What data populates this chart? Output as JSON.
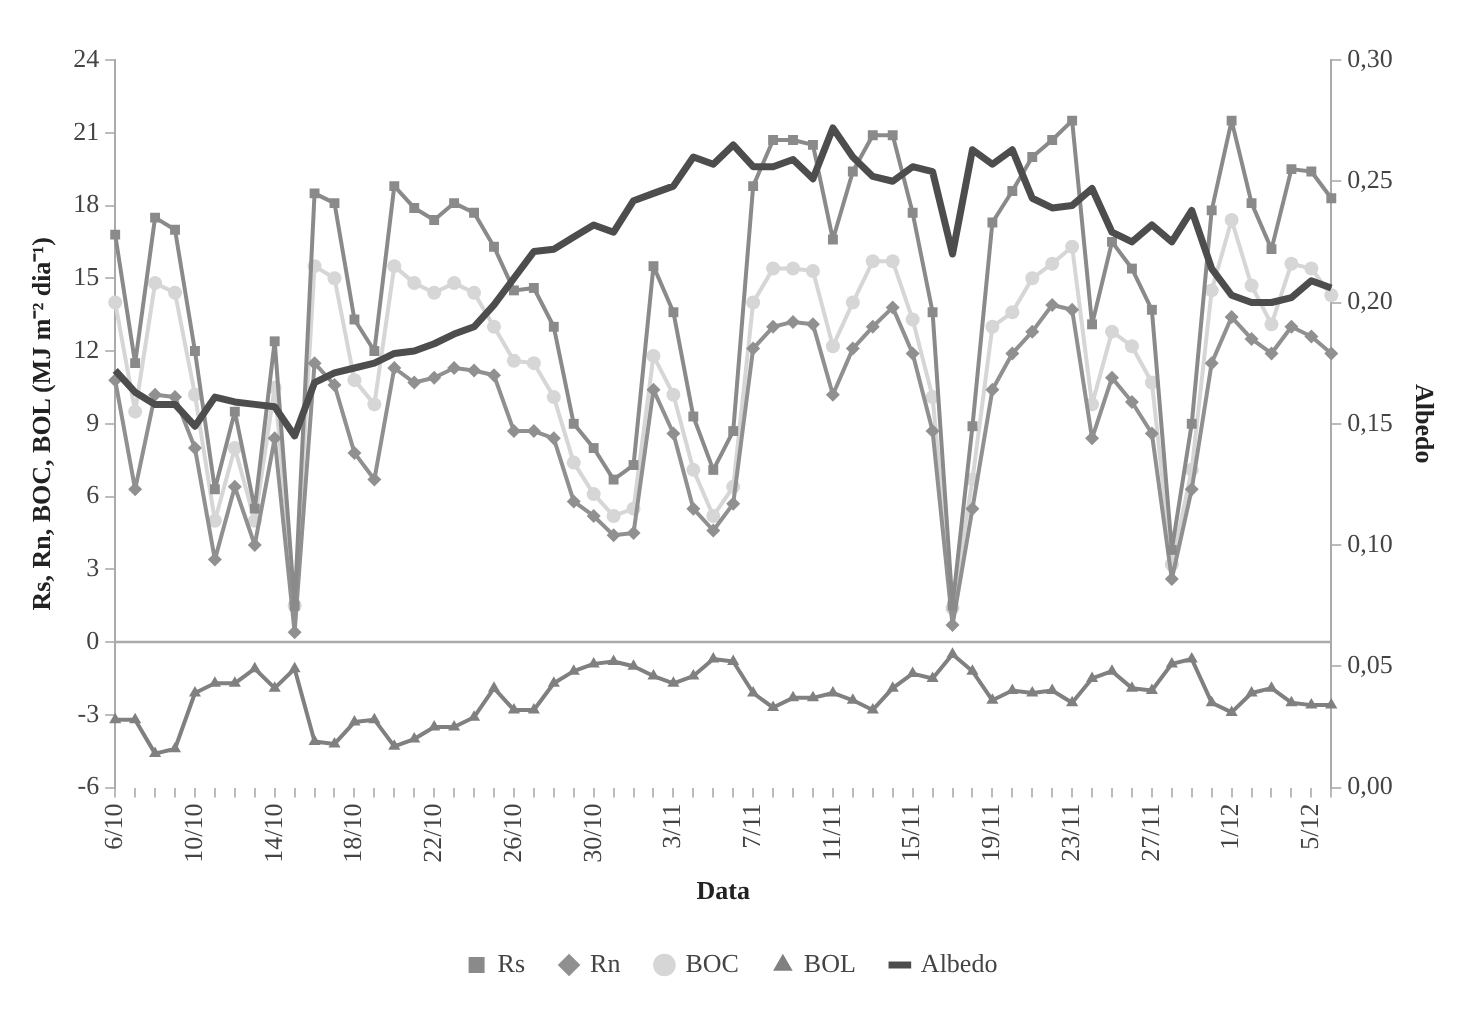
{
  "chart_data": {
    "type": "line",
    "xlabel": "Data",
    "ylabel": "Rs, Rn, BOC, BOL (MJ m⁻² dia⁻¹)",
    "y2label": "Albedo",
    "categories": [
      "6/10",
      null,
      null,
      null,
      "10/10",
      null,
      null,
      null,
      "14/10",
      null,
      null,
      null,
      "18/10",
      null,
      null,
      null,
      "22/10",
      null,
      null,
      null,
      "26/10",
      null,
      null,
      null,
      "30/10",
      null,
      null,
      null,
      "3/11",
      null,
      null,
      null,
      "7/11",
      null,
      null,
      null,
      "11/11",
      null,
      null,
      null,
      "15/11",
      null,
      null,
      null,
      "19/11",
      null,
      null,
      null,
      "23/11",
      null,
      null,
      null,
      "27/11",
      null,
      null,
      null,
      "1/12",
      null,
      null,
      null,
      "5/12",
      null
    ],
    "series": [
      {
        "name": "Rs",
        "color": "#8a8a8a",
        "marker": "square",
        "values": [
          16.8,
          11.5,
          17.5,
          17.0,
          12.0,
          6.3,
          9.5,
          5.5,
          12.4,
          1.5,
          18.5,
          18.1,
          13.3,
          12.0,
          18.8,
          17.9,
          17.4,
          18.1,
          17.7,
          16.3,
          14.5,
          14.6,
          13.0,
          9.0,
          8.0,
          6.7,
          7.3,
          15.5,
          13.6,
          9.3,
          7.1,
          8.7,
          18.8,
          20.7,
          20.7,
          20.5,
          16.6,
          19.4,
          20.9,
          20.9,
          17.7,
          13.6,
          1.5,
          8.9,
          17.3,
          18.6,
          20.0,
          20.7,
          21.5,
          13.1,
          16.5,
          15.4,
          13.7,
          3.8,
          9.0,
          17.8,
          21.5,
          18.1,
          16.2,
          19.5,
          19.4,
          18.3
        ]
      },
      {
        "name": "Rn",
        "color": "#909090",
        "marker": "diamond",
        "values": [
          10.8,
          6.3,
          10.2,
          10.1,
          8.0,
          3.4,
          6.4,
          4.0,
          8.4,
          0.4,
          11.5,
          10.6,
          7.8,
          6.7,
          11.3,
          10.7,
          10.9,
          11.3,
          11.2,
          11.0,
          8.7,
          8.7,
          8.4,
          5.8,
          5.2,
          4.4,
          4.5,
          10.4,
          8.6,
          5.5,
          4.6,
          5.7,
          12.1,
          13.0,
          13.2,
          13.1,
          10.2,
          12.1,
          13.0,
          13.8,
          11.9,
          8.7,
          0.7,
          5.5,
          10.4,
          11.9,
          12.8,
          13.9,
          13.7,
          8.4,
          10.9,
          9.9,
          8.6,
          2.6,
          6.3,
          11.5,
          13.4,
          12.5,
          11.9,
          13.0,
          12.6,
          11.9
        ]
      },
      {
        "name": "BOC",
        "color": "#d6d6d6",
        "marker": "circle",
        "values": [
          14.0,
          9.5,
          14.8,
          14.4,
          10.2,
          5.0,
          8.0,
          5.0,
          10.5,
          1.5,
          15.5,
          15.0,
          10.8,
          9.8,
          15.5,
          14.8,
          14.4,
          14.8,
          14.4,
          13.0,
          11.6,
          11.5,
          10.1,
          7.4,
          6.1,
          5.2,
          5.5,
          11.8,
          10.2,
          7.1,
          5.2,
          6.4,
          14.0,
          15.4,
          15.4,
          15.3,
          12.2,
          14.0,
          15.7,
          15.7,
          13.3,
          10.1,
          1.4,
          6.7,
          13.0,
          13.6,
          15.0,
          15.6,
          16.3,
          9.8,
          12.8,
          12.2,
          10.7,
          3.2,
          7.1,
          14.5,
          17.4,
          14.7,
          13.1,
          15.6,
          15.4,
          14.3
        ]
      },
      {
        "name": "BOL",
        "color": "#808080",
        "marker": "triangle",
        "values": [
          -3.2,
          -3.2,
          -4.6,
          -4.4,
          -2.1,
          -1.7,
          -1.7,
          -1.1,
          -1.9,
          -1.1,
          -4.1,
          -4.2,
          -3.3,
          -3.2,
          -4.3,
          -4.0,
          -3.5,
          -3.5,
          -3.1,
          -1.9,
          -2.8,
          -2.8,
          -1.7,
          -1.2,
          -0.9,
          -0.8,
          -1.0,
          -1.4,
          -1.7,
          -1.4,
          -0.7,
          -0.8,
          -2.1,
          -2.7,
          -2.3,
          -2.3,
          -2.1,
          -2.4,
          -2.8,
          -1.9,
          -1.3,
          -1.5,
          -0.5,
          -1.2,
          -2.4,
          -2.0,
          -2.1,
          -2.0,
          -2.5,
          -1.5,
          -1.2,
          -1.9,
          -2.0,
          -0.9,
          -0.7,
          -2.5,
          -2.9,
          -2.1,
          -1.9,
          -2.5,
          -2.6,
          -2.6
        ]
      },
      {
        "name": "Albedo",
        "color": "#4d4d4d",
        "marker": "none",
        "axis": "y2",
        "values": [
          0.172,
          0.163,
          0.158,
          0.158,
          0.149,
          0.161,
          0.159,
          0.158,
          0.157,
          0.145,
          0.167,
          0.171,
          0.173,
          0.175,
          0.179,
          0.18,
          0.183,
          0.187,
          0.19,
          0.199,
          0.21,
          0.221,
          0.222,
          0.227,
          0.232,
          0.229,
          0.242,
          0.245,
          0.248,
          0.26,
          0.257,
          0.265,
          0.256,
          0.256,
          0.259,
          0.251,
          0.272,
          0.26,
          0.252,
          0.25,
          0.256,
          0.254,
          0.22,
          0.263,
          0.257,
          0.263,
          0.243,
          0.239,
          0.24,
          0.247,
          0.229,
          0.225,
          0.232,
          0.225,
          0.238,
          0.214,
          0.203,
          0.2,
          0.2,
          0.202,
          0.209,
          0.206
        ]
      }
    ],
    "ylim": [
      -6,
      24
    ],
    "yticks": [
      -6,
      -3,
      0,
      3,
      6,
      9,
      12,
      15,
      18,
      21,
      24
    ],
    "y2lim": [
      0,
      0.3
    ],
    "y2ticks": [
      {
        "value": 0,
        "label": "0,00"
      },
      {
        "value": 0.05,
        "label": "0,05"
      },
      {
        "value": 0.1,
        "label": "0,10"
      },
      {
        "value": 0.15,
        "label": "0,15"
      },
      {
        "value": 0.2,
        "label": "0,20"
      },
      {
        "value": 0.25,
        "label": "0,25"
      },
      {
        "value": 0.3,
        "label": "0,30"
      }
    ],
    "ref_lines": [
      {
        "axis": "y",
        "value": 0,
        "color": "#aaaaaa"
      }
    ],
    "grid": false,
    "legend": "bottom"
  }
}
